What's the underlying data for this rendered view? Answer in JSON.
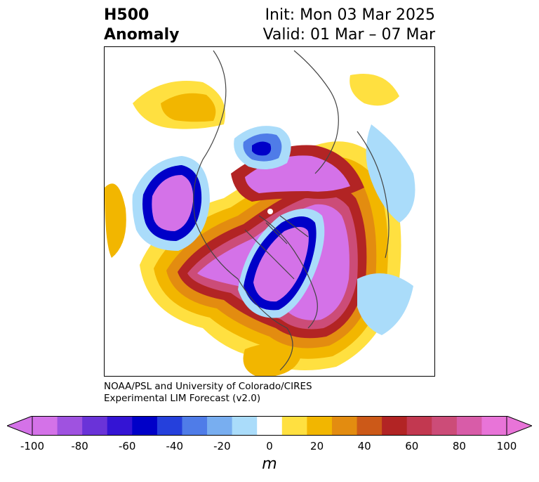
{
  "title": {
    "line1": "H500",
    "line2": "Anomaly"
  },
  "subtitle": {
    "init": "Init: Mon 03 Mar 2025",
    "valid": "Valid: 01 Mar – 07 Mar"
  },
  "credit": {
    "line1": "NOAA/PSL and University of Colorado/CIRES",
    "line2": "Experimental LIM Forecast (v2.0)"
  },
  "colorbar": {
    "unit": "m",
    "ticks": [
      "-100",
      "-80",
      "-60",
      "-40",
      "-20",
      "0",
      "20",
      "40",
      "60",
      "80",
      "100"
    ],
    "tick_values": [
      -100,
      -80,
      -60,
      -40,
      -20,
      0,
      20,
      40,
      60,
      80,
      100
    ],
    "range": [
      -100,
      100
    ],
    "step": 10,
    "colors": [
      "#d472e8",
      "#9f52e0",
      "#6a33d8",
      "#3414d4",
      "#0000c8",
      "#2540dc",
      "#4f7ce8",
      "#78aef0",
      "#aadcfa",
      "#ffffff",
      "#ffe040",
      "#f2b600",
      "#e38c10",
      "#cc5918",
      "#b22424",
      "#c23850",
      "#cc4c78",
      "#d85ca8",
      "#e874d8"
    ],
    "under_color": "#d472e8",
    "over_color": "#e874d8"
  },
  "map": {
    "projection": "north-polar-stereographic",
    "field": "500 hPa height anomaly"
  }
}
